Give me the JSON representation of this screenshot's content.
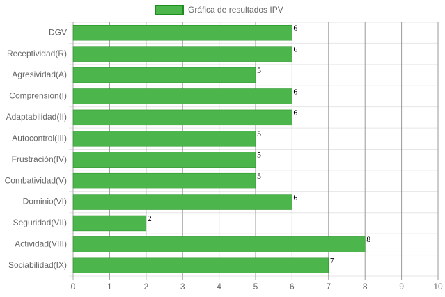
{
  "chart_data": {
    "type": "bar",
    "orientation": "horizontal",
    "categories": [
      "DGV",
      "Receptividad(R)",
      "Agresividad(A)",
      "Comprensión(I)",
      "Adaptabilidad(II)",
      "Autocontrol(III)",
      "Frustración(IV)",
      "Combatividad(V)",
      "Dominio(VI)",
      "Seguridad(VII)",
      "Actividad(VIII)",
      "Sociabilidad(IX)"
    ],
    "series": [
      {
        "name": "Gráfica de resultados IPV",
        "color": "#4cb54c",
        "border_color": "#1e8c1e",
        "values": [
          6,
          6,
          5,
          6,
          6,
          5,
          5,
          5,
          6,
          2,
          8,
          7
        ]
      }
    ],
    "xlim": [
      0,
      10
    ],
    "xticks": [
      0,
      1,
      2,
      3,
      4,
      5,
      6,
      7,
      8,
      9,
      10
    ],
    "grid": true,
    "legend": "top",
    "data_labels": true
  }
}
